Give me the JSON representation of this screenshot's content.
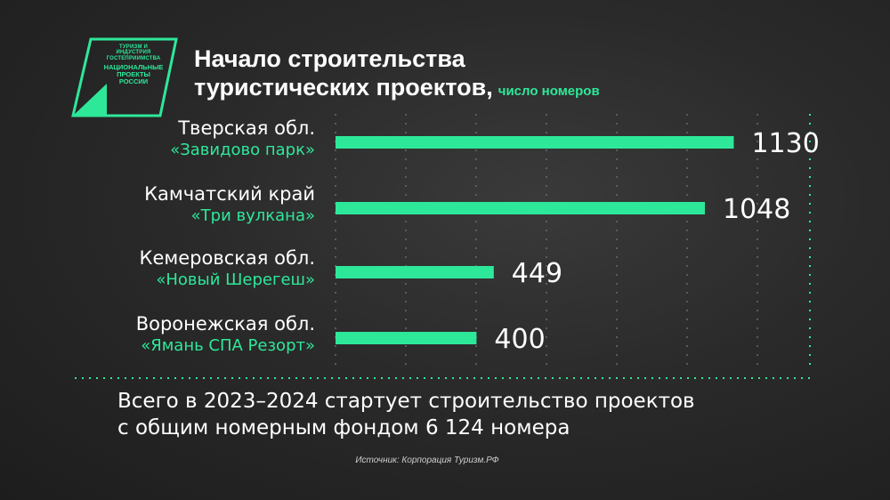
{
  "logo": {
    "line1": "ТУРИЗМ И ИНДУСТРИЯ ГОСТЕПРИИМСТВА",
    "line2": "НАЦИОНАЛЬНЫЕ ПРОЕКТЫ РОССИИ",
    "accent": "#2ee89a"
  },
  "title": {
    "line1": "Начало строительства",
    "line2": "туристических проектов,",
    "subtitle": "число номеров"
  },
  "chart_data": {
    "type": "bar",
    "orientation": "horizontal",
    "categories": [
      {
        "region": "Тверская обл.",
        "project": "«Завидово парк»"
      },
      {
        "region": "Камчатский край",
        "project": "«Три вулкана»"
      },
      {
        "region": "Кемеровская обл.",
        "project": "«Новый Шерегеш»"
      },
      {
        "region": "Воронежская обл.",
        "project": "«Ямань СПА Резорт»"
      }
    ],
    "values": [
      1130,
      1048,
      449,
      400
    ],
    "value_labels": [
      "1130",
      "1048",
      "449",
      "400"
    ],
    "xlim": [
      0,
      1200
    ],
    "grid": "vertical dotted",
    "bar_color": "#2ee89a"
  },
  "summary": {
    "line1": "Всего в 2023–2024 стартует строительство проектов",
    "line2": "с общим номерным фондом 6 124 номера"
  },
  "source": "Источник: Корпорация Туризм.РФ"
}
